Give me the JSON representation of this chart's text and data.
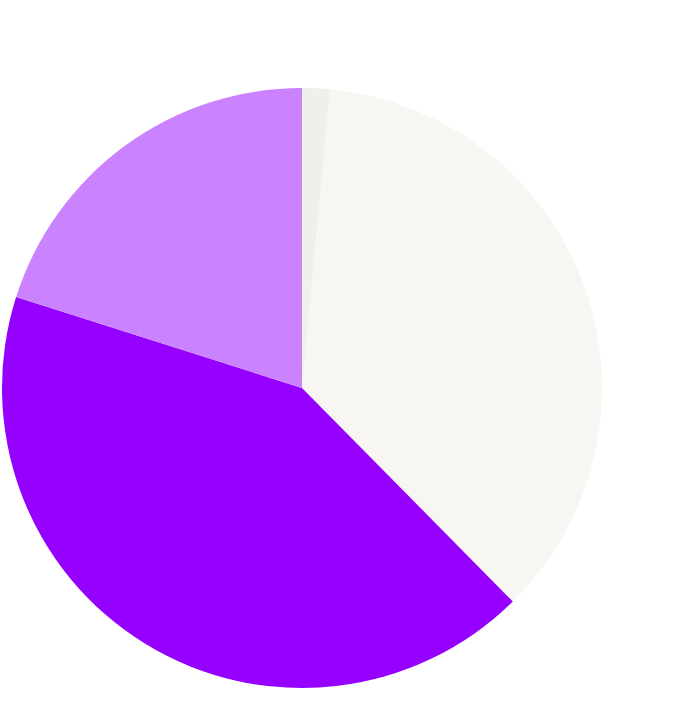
{
  "chart_data": {
    "type": "pie",
    "categories": [
      null,
      null,
      null,
      null
    ],
    "values": [
      1.5,
      36.1,
      42.3,
      20.1
    ],
    "colors": [
      "#f1efeb",
      "#f7f6f3",
      "#9500ff",
      "#cb82ff"
    ]
  }
}
